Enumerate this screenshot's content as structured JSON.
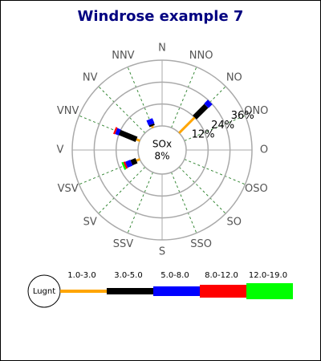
{
  "chart_data": {
    "type": "windrose",
    "title": "Windrose example 7",
    "directions": [
      "N",
      "NNO",
      "NO",
      "ONO",
      "O",
      "OSO",
      "SO",
      "SSO",
      "S",
      "SSV",
      "SV",
      "VSV",
      "V",
      "VNV",
      "NV",
      "NNV"
    ],
    "center_label": "SOx",
    "calm": {
      "value": 8,
      "label": "8%"
    },
    "legend_calm_label": "Lugnt",
    "rlim": [
      0,
      36
    ],
    "rticks": [
      {
        "value": 12,
        "label": "12%"
      },
      {
        "value": 24,
        "label": "24%"
      },
      {
        "value": 36,
        "label": "36%"
      }
    ],
    "series": [
      {
        "name": "1.0-3.0",
        "color": "#ffa500",
        "values": [
          0,
          0,
          12,
          0,
          0,
          0,
          0,
          0,
          0,
          0,
          0,
          2,
          0,
          2,
          0,
          1
        ]
      },
      {
        "name": "3.0-5.0",
        "color": "#000000",
        "values": [
          0,
          0,
          9,
          0,
          0,
          0,
          0,
          0,
          0,
          0,
          0,
          3,
          0,
          10,
          0,
          1
        ]
      },
      {
        "name": "5.0-8.0",
        "color": "#0000ff",
        "values": [
          0,
          0,
          3,
          0,
          0,
          0,
          0,
          0,
          0,
          0,
          0,
          3,
          0,
          2,
          0,
          3
        ]
      },
      {
        "name": "8.0-12.0",
        "color": "#ff0000",
        "values": [
          0,
          0,
          0,
          0,
          0,
          0,
          0,
          0,
          0,
          0,
          0,
          1,
          0,
          1,
          0,
          0
        ]
      },
      {
        "name": "12.0-19.0",
        "color": "#00ff00",
        "values": [
          0,
          0,
          0,
          0,
          0,
          0,
          0,
          0,
          0,
          0,
          0,
          1,
          0,
          0,
          0,
          0
        ]
      }
    ]
  }
}
